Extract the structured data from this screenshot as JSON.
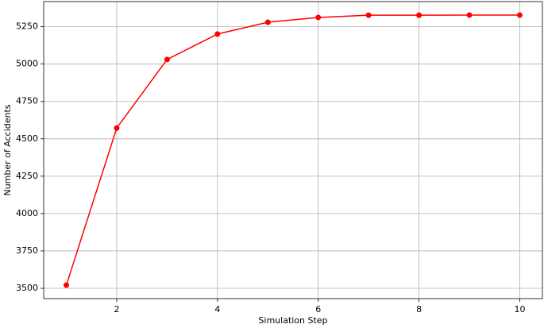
{
  "chart_data": {
    "type": "line",
    "xlabel": "Simulation Step",
    "ylabel": "Number of Accidents",
    "x": [
      1,
      2,
      3,
      4,
      5,
      6,
      7,
      8,
      9,
      10
    ],
    "values": [
      3521,
      4572,
      5031,
      5201,
      5280,
      5312,
      5327,
      5327,
      5328,
      5328
    ],
    "color": "#ff0000",
    "marker": true,
    "xlim": [
      0.55,
      10.45
    ],
    "xticks": [
      2,
      4,
      6,
      8,
      10
    ],
    "ylim": [
      3431,
      5418
    ],
    "yticks": [
      3500,
      3750,
      4000,
      4250,
      4500,
      4750,
      5000,
      5250
    ],
    "grid": true
  }
}
